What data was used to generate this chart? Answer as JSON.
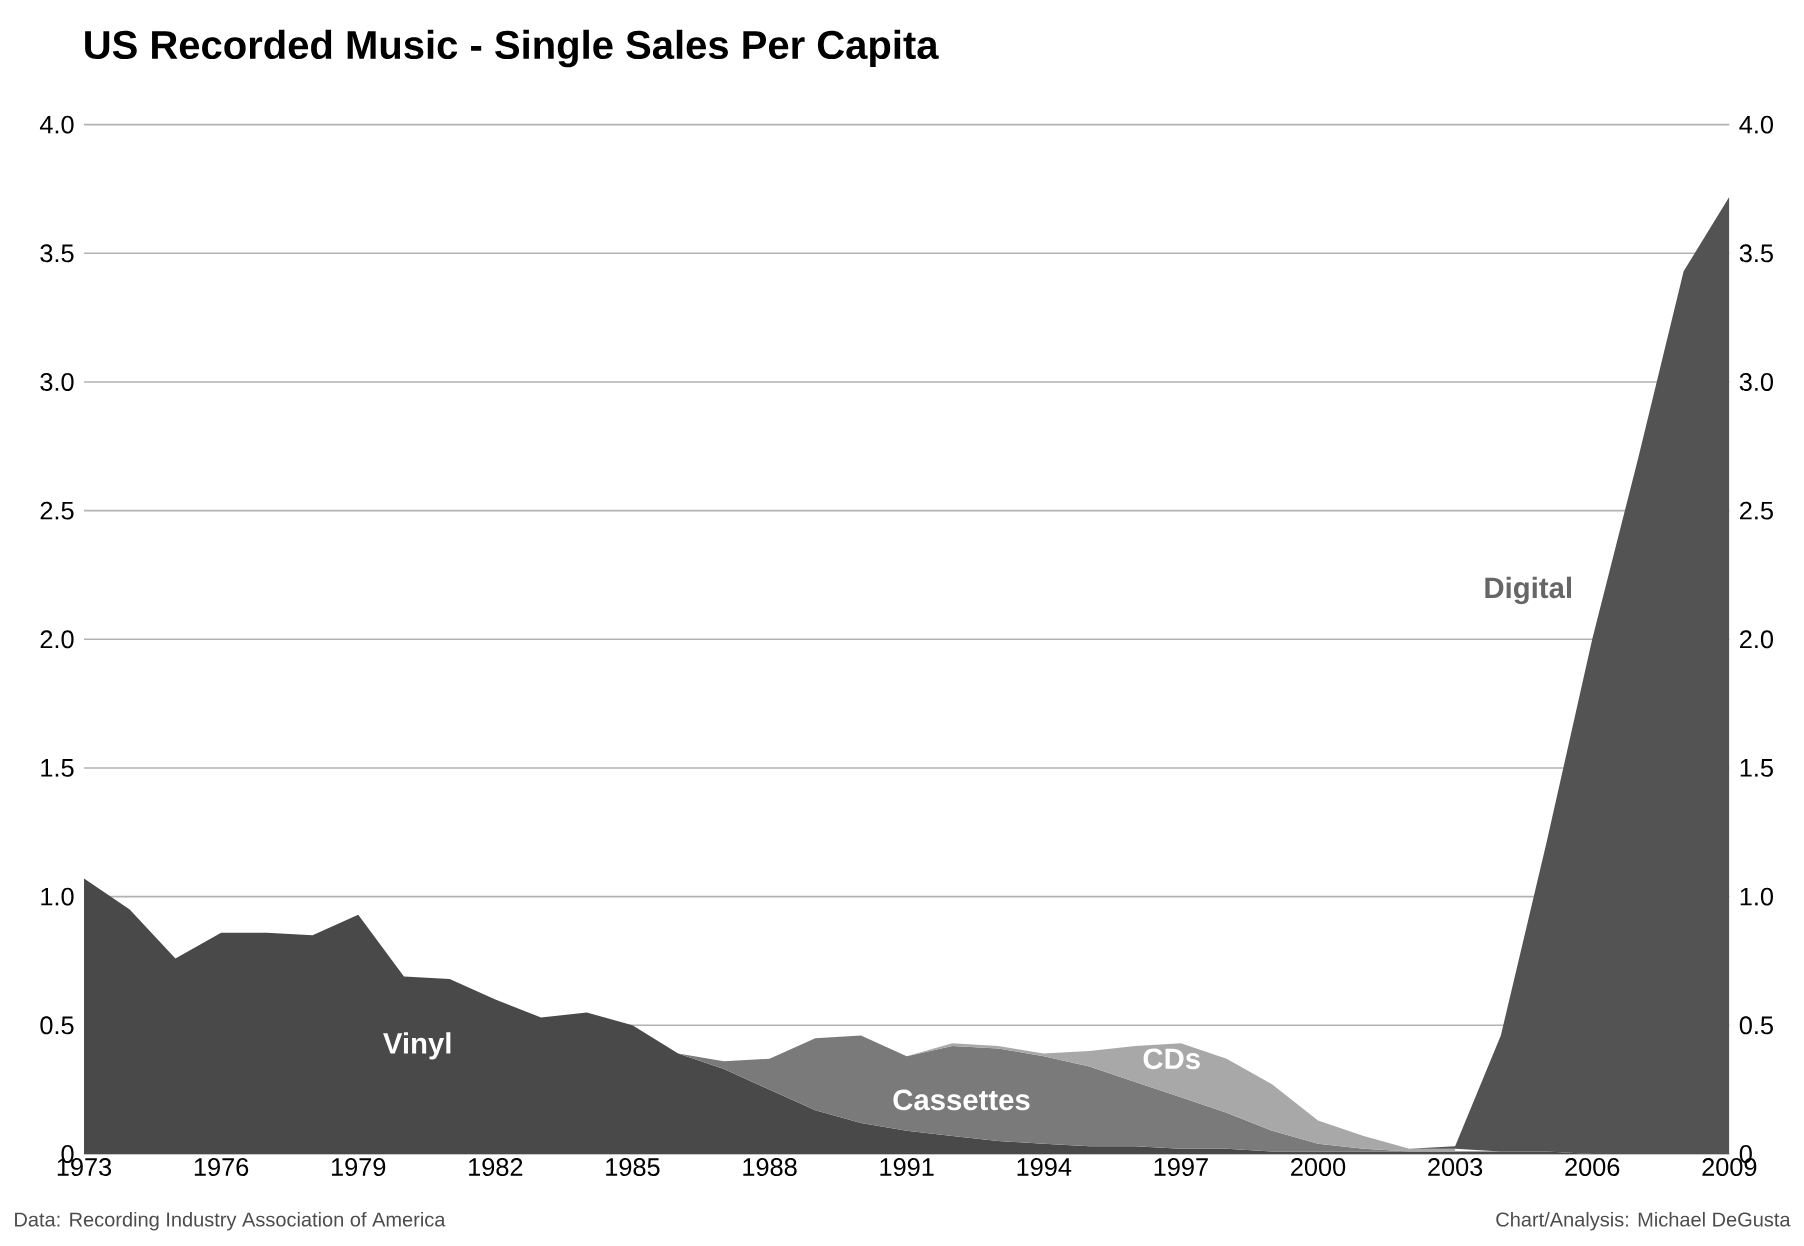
{
  "chart_data": {
    "type": "area",
    "title": "US Recorded Music - Single Sales Per Capita",
    "stacked": true,
    "grid": "y",
    "legend": false,
    "x": [
      1973,
      1974,
      1975,
      1976,
      1977,
      1978,
      1979,
      1980,
      1981,
      1982,
      1983,
      1984,
      1985,
      1986,
      1987,
      1988,
      1989,
      1990,
      1991,
      1992,
      1993,
      1994,
      1995,
      1996,
      1997,
      1998,
      1999,
      2000,
      2001,
      2002,
      2003,
      2004,
      2005,
      2006,
      2007,
      2008,
      2009
    ],
    "series": [
      {
        "name": "Vinyl",
        "color": "#494949",
        "values": [
          1.07,
          0.95,
          0.76,
          0.86,
          0.86,
          0.85,
          0.93,
          0.69,
          0.68,
          0.6,
          0.53,
          0.55,
          0.5,
          0.39,
          0.33,
          0.25,
          0.17,
          0.12,
          0.09,
          0.07,
          0.05,
          0.04,
          0.03,
          0.03,
          0.02,
          0.02,
          0.01,
          0.01,
          0.01,
          0.01,
          0.01,
          0.01,
          0.01,
          0,
          0,
          0,
          0
        ]
      },
      {
        "name": "Cassettes",
        "color": "#7a7a7a",
        "values": [
          null,
          null,
          null,
          null,
          null,
          null,
          null,
          null,
          null,
          null,
          null,
          null,
          null,
          0,
          0.03,
          0.12,
          0.28,
          0.34,
          0.29,
          0.35,
          0.36,
          0.34,
          0.31,
          0.25,
          0.2,
          0.14,
          0.08,
          0.03,
          0.01,
          0,
          null,
          null,
          null,
          null,
          null,
          null,
          null
        ]
      },
      {
        "name": "CDs",
        "color": "#a8a8a8",
        "values": [
          null,
          null,
          null,
          null,
          null,
          null,
          null,
          null,
          null,
          null,
          null,
          null,
          null,
          null,
          null,
          null,
          null,
          null,
          0,
          0.01,
          0.01,
          0.01,
          0.06,
          0.14,
          0.21,
          0.21,
          0.18,
          0.09,
          0.05,
          0.01,
          0.01,
          null,
          null,
          null,
          null,
          null,
          null
        ]
      },
      {
        "name": "Digital",
        "color": "#535353",
        "values": [
          null,
          null,
          null,
          null,
          null,
          null,
          null,
          null,
          null,
          null,
          null,
          null,
          null,
          null,
          null,
          null,
          null,
          null,
          null,
          null,
          null,
          null,
          null,
          null,
          null,
          null,
          null,
          null,
          null,
          0,
          0.01,
          0.45,
          1.2,
          2.0,
          2.7,
          3.43,
          3.72
        ]
      }
    ],
    "xlim": [
      1973,
      2009
    ],
    "xticks": [
      1973,
      1976,
      1979,
      1982,
      1985,
      1988,
      1991,
      1994,
      1997,
      2000,
      2003,
      2006,
      2009
    ],
    "ylim": [
      0,
      4
    ],
    "yticks": [
      0,
      0.5,
      {
        "value": 1,
        "label": "1.0"
      },
      1.5,
      {
        "value": 2,
        "label": "2.0"
      },
      2.5,
      {
        "value": 3,
        "label": "3.0"
      },
      3.5,
      {
        "value": 4,
        "label": "4.0"
      }
    ],
    "y2lim": [
      0,
      4
    ],
    "y2ticks": [
      0,
      0.5,
      {
        "value": 1,
        "label": "1.0"
      },
      1.5,
      {
        "value": 2,
        "label": "2.0"
      },
      2.5,
      {
        "value": 3,
        "label": "3.0"
      },
      3.5,
      {
        "value": 4,
        "label": "4.0"
      }
    ],
    "annotations": [
      "Data: Recording Industry Association of America",
      "Chart/Analysis: Michael DeGusta"
    ]
  }
}
